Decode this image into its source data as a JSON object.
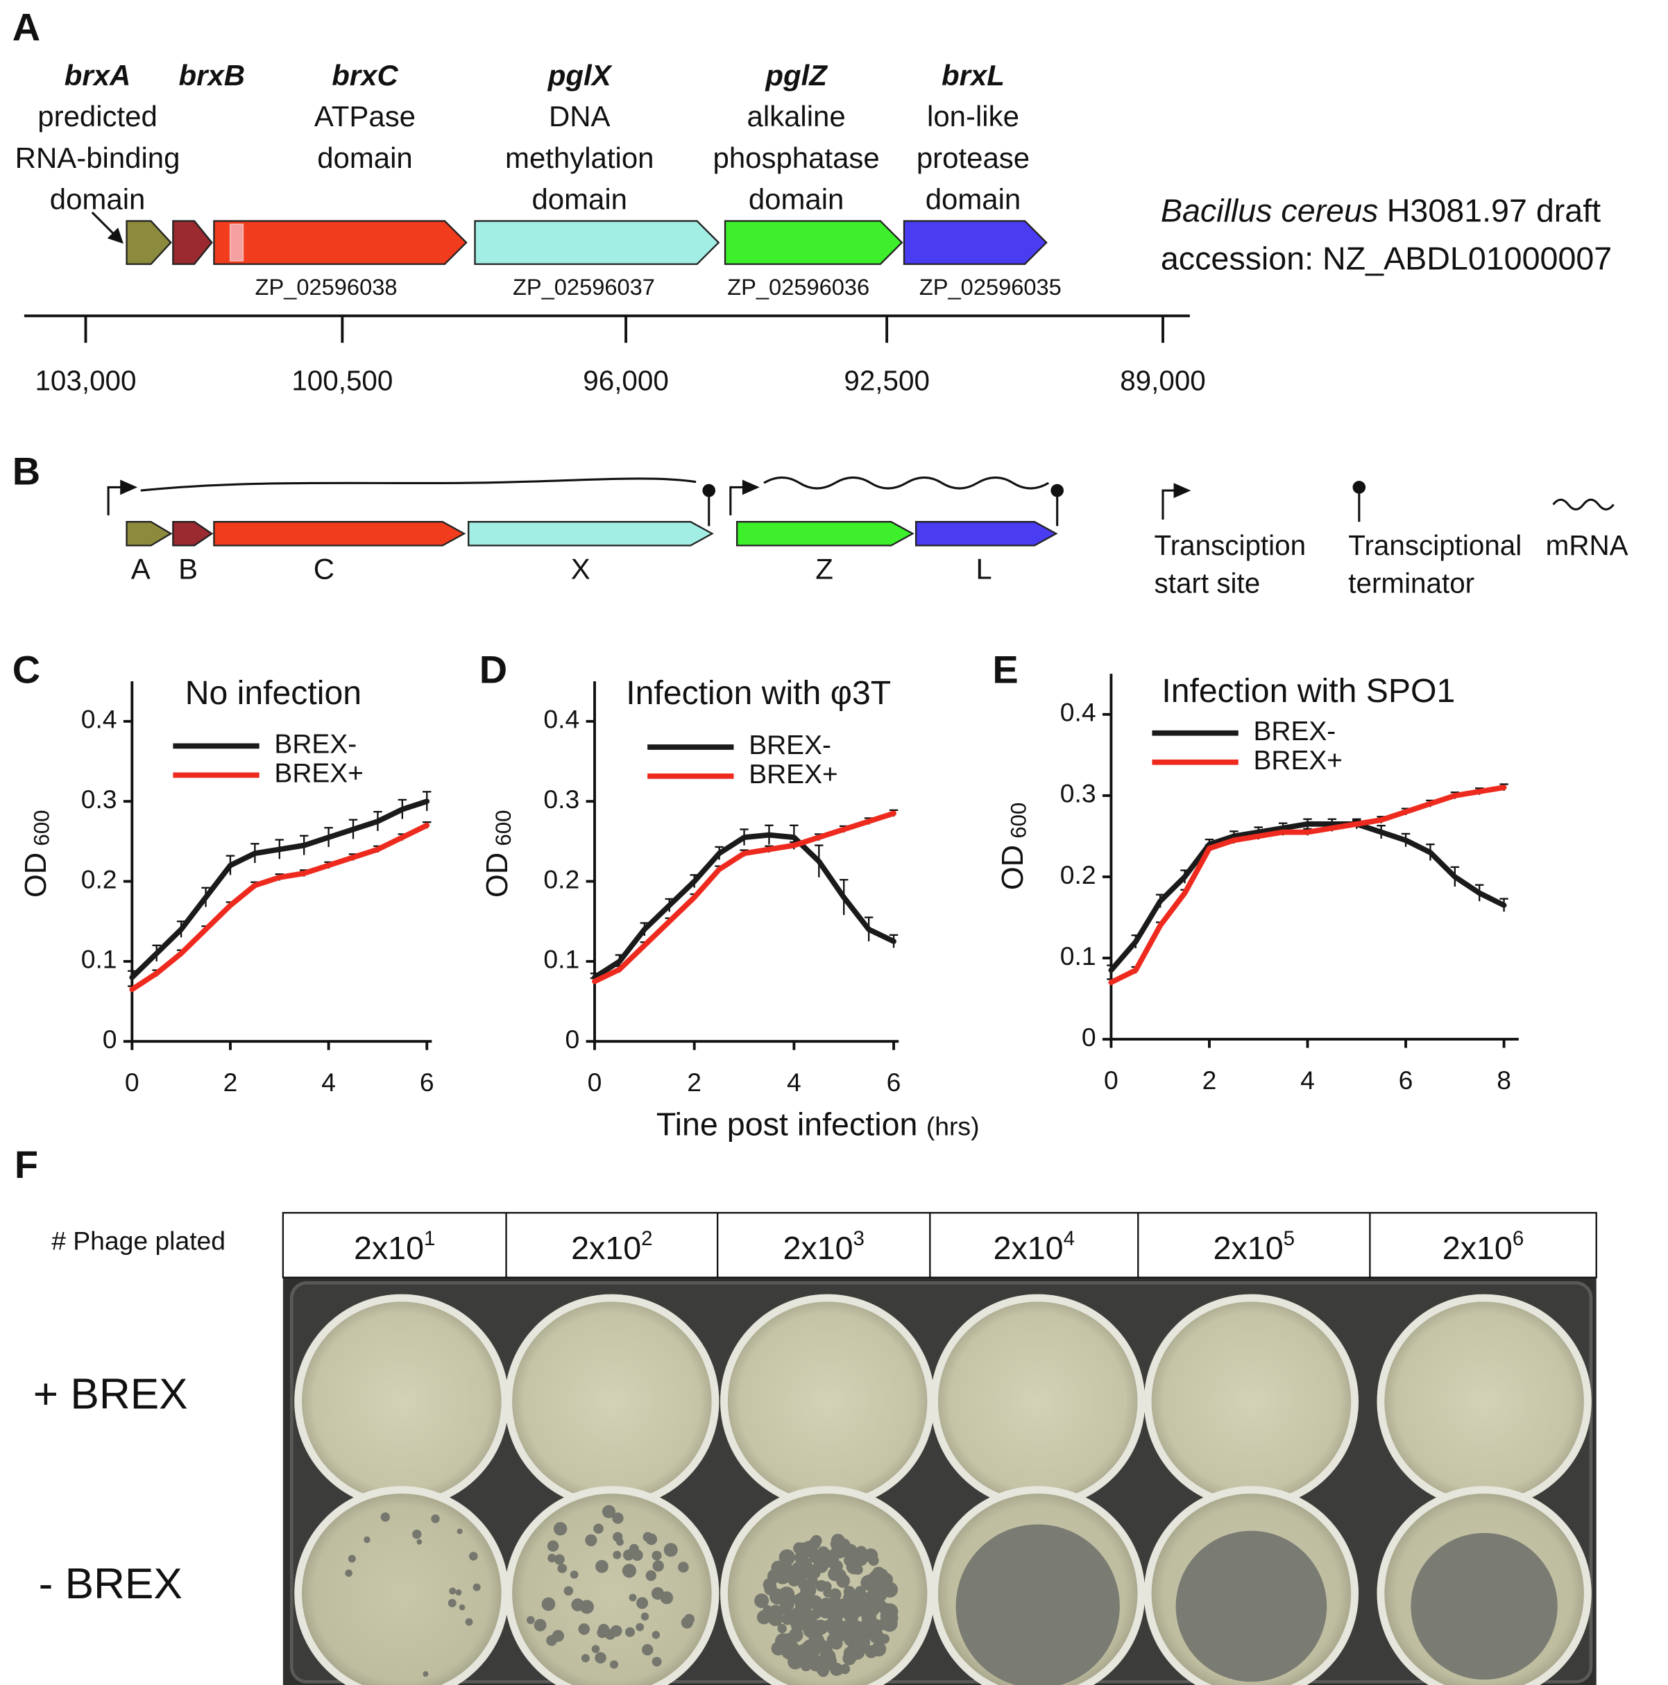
{
  "panel_a": {
    "label": "A",
    "genes": [
      {
        "name": "brxA",
        "description": [
          "predicted",
          "RNA-binding",
          "domain"
        ],
        "color": "#8c8a3c"
      },
      {
        "name": "brxB",
        "color": "#9a2a30"
      },
      {
        "name": "brxC",
        "description": [
          "ATPase",
          "domain"
        ],
        "accession": "ZP_02596038",
        "color": "#f23c1e"
      },
      {
        "name": "pglX",
        "description": [
          "DNA",
          "methylation",
          "domain"
        ],
        "accession": "ZP_02596037",
        "color": "#a2ede4"
      },
      {
        "name": "pglZ",
        "description": [
          "alkaline",
          "phosphatase",
          "domain"
        ],
        "accession": "ZP_02596036",
        "color": "#3ef02c"
      },
      {
        "name": "brxL",
        "description": [
          "lon-like",
          "protease",
          "domain"
        ],
        "accession": "ZP_02596035",
        "color": "#4a3cf0"
      }
    ],
    "organism": {
      "species": "Bacillus cereus",
      "strain": "H3081.97 draft",
      "accession": "accession: NZ_ABDL01000007"
    },
    "scale_labels": [
      "103,000",
      "100,500",
      "96,000",
      "92,500",
      "89,000"
    ]
  },
  "panel_b": {
    "label": "B",
    "genes": [
      {
        "name": "A",
        "color": "#8c8a3c"
      },
      {
        "name": "B",
        "color": "#9a2a30"
      },
      {
        "name": "C",
        "color": "#f23c1e"
      },
      {
        "name": "X",
        "color": "#a2ede4"
      },
      {
        "name": "Z",
        "color": "#3ef02c"
      },
      {
        "name": "L",
        "color": "#4a3cf0"
      }
    ],
    "legend": [
      {
        "lines": [
          "Transciption",
          "start site"
        ]
      },
      {
        "lines": [
          "Transciptional",
          "terminator"
        ]
      },
      {
        "lines": [
          "mRNA"
        ]
      }
    ]
  },
  "chart_data": [
    {
      "type": "line",
      "panel": "C",
      "title": "No infection",
      "ylabel": "OD",
      "ylabel_subscript": "600",
      "x": [
        0,
        0.5,
        1,
        1.5,
        2,
        2.5,
        3,
        3.5,
        4,
        4.5,
        5,
        5.5,
        6
      ],
      "series": [
        {
          "name": "BREX-",
          "color": "#1a1a1a",
          "values": [
            0.08,
            0.11,
            0.14,
            0.18,
            0.22,
            0.235,
            0.24,
            0.245,
            0.255,
            0.265,
            0.275,
            0.29,
            0.3
          ],
          "errors": [
            0.008,
            0.01,
            0.01,
            0.012,
            0.012,
            0.012,
            0.012,
            0.012,
            0.012,
            0.012,
            0.012,
            0.012,
            0.012
          ]
        },
        {
          "name": "BREX+",
          "color": "#ee2a1e",
          "values": [
            0.065,
            0.085,
            0.11,
            0.14,
            0.17,
            0.195,
            0.205,
            0.21,
            0.22,
            0.23,
            0.24,
            0.255,
            0.27
          ],
          "errors": [
            0.004,
            0.004,
            0.004,
            0.004,
            0.004,
            0.004,
            0.004,
            0.004,
            0.004,
            0.004,
            0.004,
            0.004,
            0.004
          ]
        }
      ],
      "xlim": [
        0,
        6.1
      ],
      "ylim": [
        0,
        0.45
      ],
      "xticks": [
        0,
        2,
        4,
        6
      ],
      "yticks": [
        0,
        0.1,
        0.2,
        0.3,
        0.4
      ]
    },
    {
      "type": "line",
      "panel": "D",
      "title": "Infection with φ3T",
      "ylabel": "OD",
      "ylabel_subscript": "600",
      "xlabel": "Tine post infection",
      "xlabel_unit": "(hrs)",
      "x": [
        0,
        0.5,
        1,
        1.5,
        2,
        2.5,
        3,
        3.5,
        4,
        4.5,
        5,
        5.5,
        6
      ],
      "series": [
        {
          "name": "BREX-",
          "color": "#1a1a1a",
          "values": [
            0.08,
            0.1,
            0.14,
            0.17,
            0.2,
            0.235,
            0.255,
            0.258,
            0.255,
            0.225,
            0.18,
            0.14,
            0.125
          ],
          "errors": [
            0.005,
            0.008,
            0.008,
            0.008,
            0.008,
            0.008,
            0.01,
            0.012,
            0.015,
            0.02,
            0.022,
            0.015,
            0.008
          ]
        },
        {
          "name": "BREX+",
          "color": "#ee2a1e",
          "values": [
            0.075,
            0.09,
            0.12,
            0.15,
            0.18,
            0.215,
            0.235,
            0.24,
            0.245,
            0.255,
            0.265,
            0.275,
            0.285
          ],
          "errors": [
            0.004,
            0.004,
            0.004,
            0.004,
            0.004,
            0.004,
            0.004,
            0.004,
            0.004,
            0.004,
            0.004,
            0.004,
            0.004
          ]
        }
      ],
      "xlim": [
        0,
        6.1
      ],
      "ylim": [
        0,
        0.45
      ],
      "xticks": [
        0,
        2,
        4,
        6
      ],
      "yticks": [
        0,
        0.1,
        0.2,
        0.3,
        0.4
      ]
    },
    {
      "type": "line",
      "panel": "E",
      "title": "Infection with SPO1",
      "ylabel": "OD",
      "ylabel_subscript": "600",
      "x": [
        0,
        0.5,
        1,
        1.5,
        2,
        2.5,
        3,
        3.5,
        4,
        4.5,
        5,
        5.5,
        6,
        6.5,
        7,
        7.5,
        8
      ],
      "series": [
        {
          "name": "BREX-",
          "color": "#1a1a1a",
          "values": [
            0.085,
            0.12,
            0.17,
            0.2,
            0.24,
            0.25,
            0.255,
            0.26,
            0.265,
            0.265,
            0.265,
            0.255,
            0.245,
            0.23,
            0.2,
            0.18,
            0.165
          ],
          "errors": [
            0.006,
            0.008,
            0.008,
            0.008,
            0.006,
            0.006,
            0.006,
            0.006,
            0.006,
            0.006,
            0.006,
            0.008,
            0.008,
            0.01,
            0.012,
            0.01,
            0.008
          ]
        },
        {
          "name": "BREX+",
          "color": "#ee2a1e",
          "values": [
            0.07,
            0.085,
            0.14,
            0.18,
            0.235,
            0.245,
            0.25,
            0.255,
            0.255,
            0.26,
            0.265,
            0.27,
            0.28,
            0.29,
            0.3,
            0.305,
            0.31
          ],
          "errors": [
            0.004,
            0.004,
            0.004,
            0.004,
            0.004,
            0.004,
            0.004,
            0.004,
            0.004,
            0.004,
            0.004,
            0.004,
            0.004,
            0.004,
            0.004,
            0.004,
            0.004
          ]
        }
      ],
      "xlim": [
        0,
        8.3
      ],
      "ylim": [
        0,
        0.45
      ],
      "xticks": [
        0,
        2,
        4,
        6,
        8
      ],
      "yticks": [
        0,
        0.1,
        0.2,
        0.3,
        0.4
      ]
    }
  ],
  "panel_f": {
    "label": "F",
    "header": "# Phage plated",
    "columns": [
      {
        "base": "2x10",
        "exponent": "1"
      },
      {
        "base": "2x10",
        "exponent": "2"
      },
      {
        "base": "2x10",
        "exponent": "3"
      },
      {
        "base": "2x10",
        "exponent": "4"
      },
      {
        "base": "2x10",
        "exponent": "5"
      },
      {
        "base": "2x10",
        "exponent": "6"
      }
    ],
    "rows": [
      "+ BREX",
      "- BREX"
    ]
  }
}
